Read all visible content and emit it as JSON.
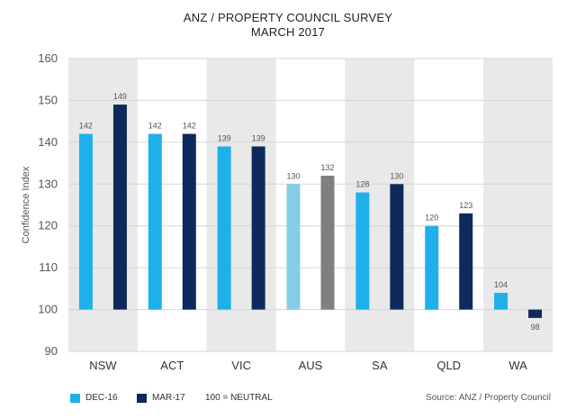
{
  "title_line1": "ANZ / PROPERTY COUNCIL SURVEY",
  "title_line2": "MARCH 2017",
  "source": "Source: ANZ / Property Council",
  "legend": {
    "dec": "DEC-16",
    "mar": "MAR-17",
    "neutral": "100 = NEUTRAL"
  },
  "colors": {
    "dec": "#1fb0ec",
    "mar": "#0e2a5c",
    "aus_dec": "#86cde6",
    "aus_mar": "#808080",
    "band": "#e9e9e9"
  },
  "chart_data": {
    "type": "bar",
    "ylabel": "Confidence Index",
    "ylim": [
      90,
      160
    ],
    "yticks": [
      90,
      100,
      110,
      120,
      130,
      140,
      150,
      160
    ],
    "baseline": 100,
    "grid": true,
    "categories": [
      "NSW",
      "ACT",
      "VIC",
      "AUS",
      "SA",
      "QLD",
      "WA"
    ],
    "series": [
      {
        "name": "DEC-16",
        "values": [
          142,
          142,
          139,
          130,
          128,
          120,
          104
        ]
      },
      {
        "name": "MAR-17",
        "values": [
          149,
          142,
          139,
          132,
          130,
          123,
          98
        ]
      }
    ]
  }
}
